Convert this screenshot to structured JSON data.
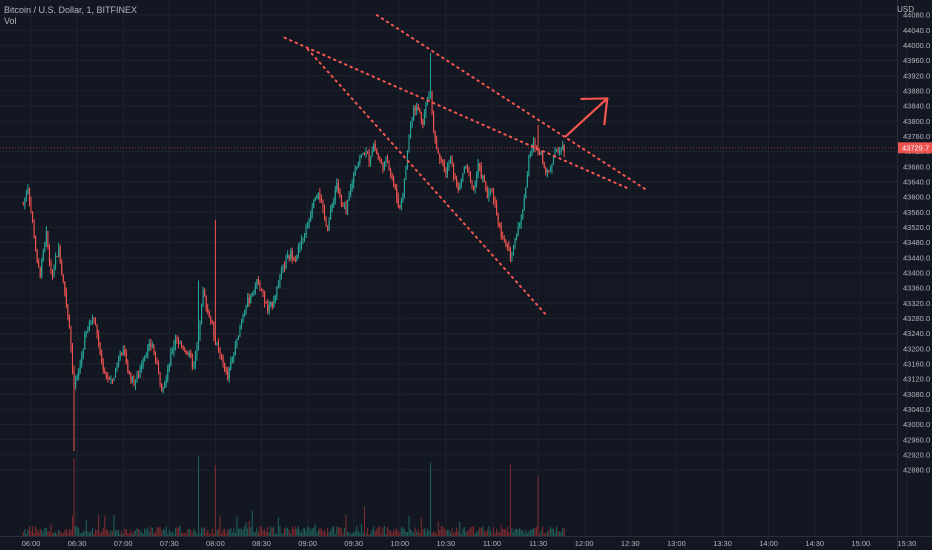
{
  "header": {
    "symbol": "Bitcoin / U.S. Dollar, 1, BITFINEX",
    "volume_label": "Vol",
    "currency": "USD"
  },
  "colors": {
    "background": "#131722",
    "grid": "#1e222d",
    "up": "#26a69a",
    "down": "#ef5350",
    "volume_up": "#1f5e57",
    "volume_down": "#7a2b2e",
    "annotation": "#f4564f",
    "axis_text": "#b2b5be"
  },
  "chart_data": {
    "type": "candlestick",
    "instrument": "Bitcoin / U.S. Dollar",
    "interval": "1",
    "exchange": "BITFINEX",
    "ylabel": "USD",
    "ylim": [
      42840,
      44100
    ],
    "xlim": [
      "05:55",
      "15:30"
    ],
    "y_ticks": [
      44080,
      44040,
      44000,
      43960,
      43920,
      43880,
      43840,
      43800,
      43760,
      43720,
      43680,
      43640,
      43600,
      43560,
      43520,
      43480,
      43440,
      43400,
      43360,
      43320,
      43280,
      43240,
      43200,
      43160,
      43120,
      43080,
      43040,
      43000,
      42960,
      42920,
      42880
    ],
    "x_ticks": [
      "06:00",
      "06:30",
      "07:00",
      "07:30",
      "08:00",
      "08:30",
      "09:00",
      "09:30",
      "10:00",
      "10:30",
      "11:00",
      "11:30",
      "12:00",
      "12:30",
      "13:00",
      "13:30",
      "14:00",
      "14:30",
      "15:00",
      "15:30"
    ],
    "last_price": "43729.7",
    "last_price_value": 43729.7,
    "price_path": [
      [
        "05:55",
        43580
      ],
      [
        "05:58",
        43630
      ],
      [
        "06:00",
        43560
      ],
      [
        "06:02",
        43500
      ],
      [
        "06:04",
        43420
      ],
      [
        "06:06",
        43400
      ],
      [
        "06:08",
        43450
      ],
      [
        "06:10",
        43500
      ],
      [
        "06:12",
        43430
      ],
      [
        "06:14",
        43380
      ],
      [
        "06:16",
        43440
      ],
      [
        "06:18",
        43460
      ],
      [
        "06:20",
        43400
      ],
      [
        "06:22",
        43350
      ],
      [
        "06:25",
        43260
      ],
      [
        "06:27",
        43150
      ],
      [
        "06:28",
        43100
      ],
      [
        "06:30",
        43120
      ],
      [
        "06:33",
        43180
      ],
      [
        "06:35",
        43230
      ],
      [
        "06:38",
        43260
      ],
      [
        "06:40",
        43290
      ],
      [
        "06:43",
        43240
      ],
      [
        "06:46",
        43160
      ],
      [
        "06:49",
        43130
      ],
      [
        "06:52",
        43110
      ],
      [
        "06:55",
        43140
      ],
      [
        "06:58",
        43200
      ],
      [
        "07:01",
        43180
      ],
      [
        "07:04",
        43130
      ],
      [
        "07:07",
        43110
      ],
      [
        "07:10",
        43130
      ],
      [
        "07:13",
        43180
      ],
      [
        "07:16",
        43200
      ],
      [
        "07:19",
        43210
      ],
      [
        "07:22",
        43150
      ],
      [
        "07:25",
        43100
      ],
      [
        "07:28",
        43120
      ],
      [
        "07:31",
        43180
      ],
      [
        "07:34",
        43230
      ],
      [
        "07:37",
        43210
      ],
      [
        "07:40",
        43200
      ],
      [
        "07:43",
        43180
      ],
      [
        "07:46",
        43150
      ],
      [
        "07:49",
        43230
      ],
      [
        "07:52",
        43350
      ],
      [
        "07:55",
        43300
      ],
      [
        "07:58",
        43260
      ],
      [
        "08:00",
        43220
      ],
      [
        "08:03",
        43180
      ],
      [
        "08:06",
        43150
      ],
      [
        "08:08",
        43120
      ],
      [
        "08:10",
        43160
      ],
      [
        "08:13",
        43200
      ],
      [
        "08:16",
        43260
      ],
      [
        "08:19",
        43310
      ],
      [
        "08:22",
        43330
      ],
      [
        "08:25",
        43360
      ],
      [
        "08:28",
        43380
      ],
      [
        "08:31",
        43340
      ],
      [
        "08:34",
        43300
      ],
      [
        "08:37",
        43320
      ],
      [
        "08:40",
        43360
      ],
      [
        "08:43",
        43400
      ],
      [
        "08:46",
        43430
      ],
      [
        "08:49",
        43450
      ],
      [
        "08:52",
        43440
      ],
      [
        "08:55",
        43470
      ],
      [
        "08:58",
        43500
      ],
      [
        "09:01",
        43540
      ],
      [
        "09:04",
        43600
      ],
      [
        "09:07",
        43620
      ],
      [
        "09:10",
        43560
      ],
      [
        "09:13",
        43520
      ],
      [
        "09:16",
        43580
      ],
      [
        "09:19",
        43640
      ],
      [
        "09:22",
        43580
      ],
      [
        "09:25",
        43560
      ],
      [
        "09:28",
        43620
      ],
      [
        "09:31",
        43680
      ],
      [
        "09:34",
        43700
      ],
      [
        "09:37",
        43720
      ],
      [
        "09:40",
        43700
      ],
      [
        "09:43",
        43740
      ],
      [
        "09:46",
        43700
      ],
      [
        "09:49",
        43680
      ],
      [
        "09:52",
        43700
      ],
      [
        "09:55",
        43650
      ],
      [
        "09:58",
        43600
      ],
      [
        "10:00",
        43570
      ],
      [
        "10:03",
        43640
      ],
      [
        "10:06",
        43760
      ],
      [
        "10:09",
        43840
      ],
      [
        "10:12",
        43830
      ],
      [
        "10:15",
        43800
      ],
      [
        "10:18",
        43860
      ],
      [
        "10:20",
        43880
      ],
      [
        "10:22",
        43780
      ],
      [
        "10:24",
        43730
      ],
      [
        "10:27",
        43700
      ],
      [
        "10:30",
        43660
      ],
      [
        "10:33",
        43700
      ],
      [
        "10:36",
        43640
      ],
      [
        "10:39",
        43620
      ],
      [
        "10:42",
        43680
      ],
      [
        "10:45",
        43660
      ],
      [
        "10:48",
        43620
      ],
      [
        "10:51",
        43680
      ],
      [
        "10:54",
        43650
      ],
      [
        "10:57",
        43600
      ],
      [
        "11:00",
        43620
      ],
      [
        "11:03",
        43560
      ],
      [
        "11:06",
        43500
      ],
      [
        "11:09",
        43470
      ],
      [
        "11:12",
        43450
      ],
      [
        "11:15",
        43490
      ],
      [
        "11:18",
        43530
      ],
      [
        "11:21",
        43590
      ],
      [
        "11:24",
        43700
      ],
      [
        "11:27",
        43740
      ],
      [
        "11:30",
        43720
      ],
      [
        "11:33",
        43700
      ],
      [
        "11:36",
        43660
      ],
      [
        "11:39",
        43690
      ],
      [
        "11:42",
        43720
      ],
      [
        "11:45",
        43735
      ],
      [
        "11:47",
        43729.7
      ]
    ],
    "extremes": [
      [
        "06:28",
        42930
      ],
      [
        "10:20",
        43980
      ],
      [
        "07:49",
        43380
      ],
      [
        "08:00",
        43540
      ],
      [
        "11:12",
        43430
      ],
      [
        "11:30",
        43790
      ]
    ],
    "annotations": [
      {
        "type": "dotted_trendline",
        "from": [
          "08:45",
          44020
        ],
        "to": [
          "12:30",
          43620
        ]
      },
      {
        "type": "dotted_trendline",
        "from": [
          "09:00",
          43990
        ],
        "to": [
          "11:35",
          43290
        ]
      },
      {
        "type": "dotted_trendline",
        "from": [
          "09:45",
          44080
        ],
        "to": [
          "12:40",
          43620
        ]
      },
      {
        "type": "arrow",
        "direction": "up",
        "from": [
          "11:48",
          43760
        ],
        "to": [
          "12:15",
          43860
        ]
      }
    ]
  }
}
